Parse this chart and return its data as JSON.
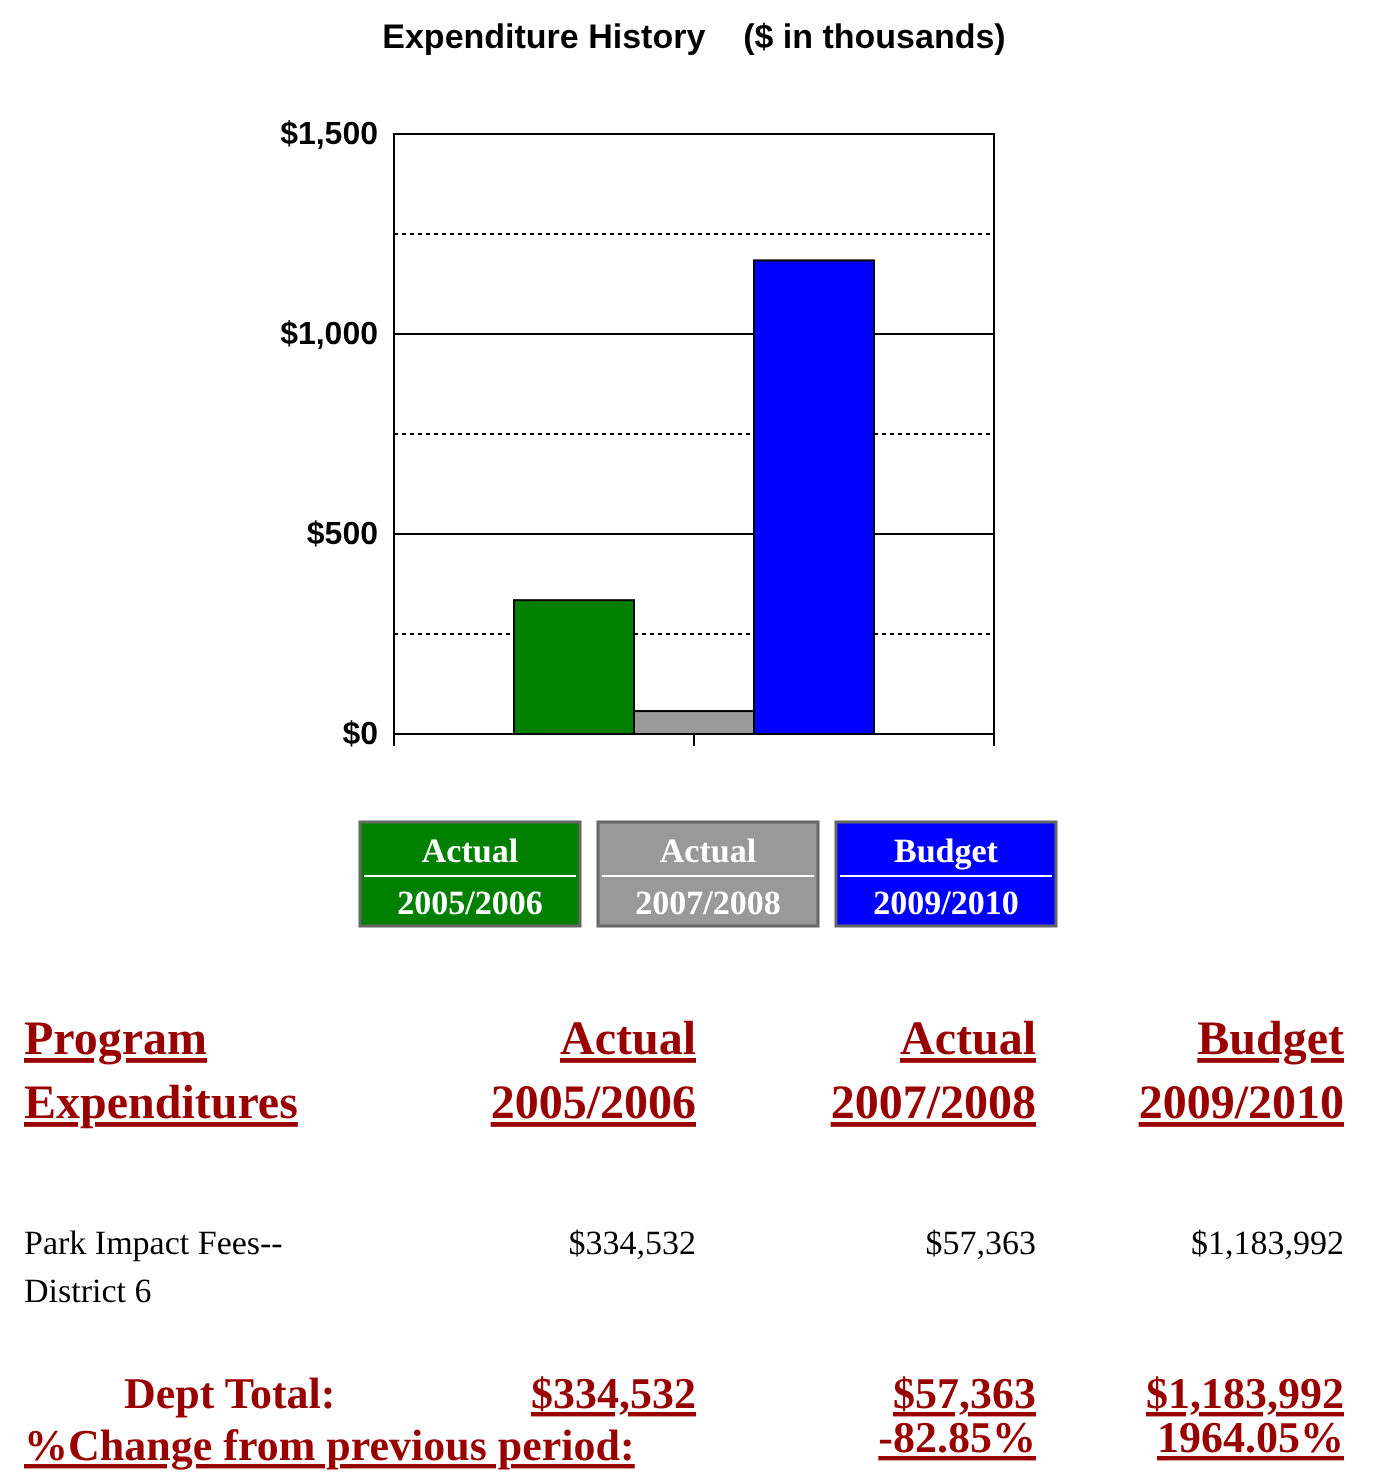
{
  "chart_data": {
    "type": "bar",
    "title": "Expenditure History    ($ in thousands)",
    "categories": [
      null
    ],
    "series": [
      {
        "name": "Actual 2005/2006",
        "color": "#008000",
        "values": [
          334.532
        ]
      },
      {
        "name": "Actual 2007/2008",
        "color": "#999999",
        "values": [
          57.363
        ]
      },
      {
        "name": "Budget 2009/2010",
        "color": "#0000ff",
        "values": [
          1183.992
        ]
      }
    ],
    "ylim": [
      0,
      1500
    ],
    "yticks": [
      {
        "value": 0,
        "label": "$0"
      },
      {
        "value": 250,
        "label": null
      },
      {
        "value": 500,
        "label": "$500"
      },
      {
        "value": 750,
        "label": null
      },
      {
        "value": 1000,
        "label": "$1,000"
      },
      {
        "value": 1250,
        "label": null
      },
      {
        "value": 1500,
        "label": "$1,500"
      }
    ],
    "grid": "y",
    "legend": "bottom",
    "annotations": [
      "Program Expenditures",
      "Park Impact Fees--District 6",
      "$334,532",
      "$57,363",
      "$1,183,992",
      "Dept Total:",
      "$334,532",
      "$57,363",
      "$1,183,992",
      "%Change from previous period:",
      "-82.85%",
      "1964.05%"
    ]
  }
}
